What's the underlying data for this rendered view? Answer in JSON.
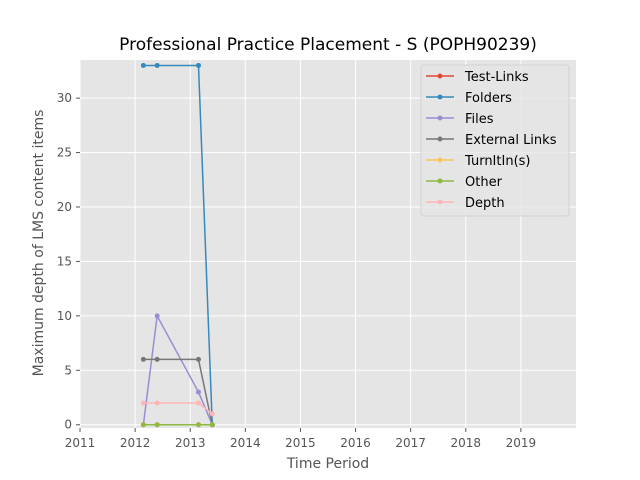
{
  "chart_data": {
    "type": "line",
    "title": "Professional Practice Placement - S (POPH90239)",
    "xlabel": "Time Period",
    "ylabel": "Maximum depth of LMS content items",
    "xlim": [
      2011,
      2020
    ],
    "ylim": [
      -0.3,
      33.5
    ],
    "xticks": [
      2011,
      2012,
      2013,
      2014,
      2015,
      2016,
      2017,
      2018,
      2019
    ],
    "xtick_labels": [
      "2011",
      "2012",
      "2013",
      "2014",
      "2015",
      "2016",
      "2017",
      "2018",
      "2019"
    ],
    "yticks": [
      0,
      5,
      10,
      15,
      20,
      25,
      30
    ],
    "ytick_labels": [
      "0",
      "5",
      "10",
      "15",
      "20",
      "25",
      "30"
    ],
    "grid": true,
    "legend_position": "top-right",
    "series": [
      {
        "name": "Test-Links",
        "color": "#E24A33",
        "x": [
          2012.15,
          2012.4,
          2013.15,
          2013.4
        ],
        "y": [
          0,
          0,
          0,
          0
        ]
      },
      {
        "name": "Folders",
        "color": "#348ABD",
        "x": [
          2012.15,
          2012.4,
          2013.15,
          2013.4
        ],
        "y": [
          33,
          33,
          33,
          0
        ]
      },
      {
        "name": "Files",
        "color": "#988ED5",
        "x": [
          2012.15,
          2012.4,
          2013.15,
          2013.4
        ],
        "y": [
          0,
          10,
          3,
          0
        ]
      },
      {
        "name": "External Links",
        "color": "#777777",
        "x": [
          2012.15,
          2012.4,
          2013.15,
          2013.4
        ],
        "y": [
          6,
          6,
          6,
          0
        ]
      },
      {
        "name": "TurnItIn(s)",
        "color": "#FBC15E",
        "x": [
          2012.15,
          2012.4,
          2013.15,
          2013.4
        ],
        "y": [
          0,
          0,
          0,
          0
        ]
      },
      {
        "name": "Other",
        "color": "#8EBA42",
        "x": [
          2012.15,
          2012.4,
          2013.15,
          2013.4
        ],
        "y": [
          0,
          0,
          0,
          0
        ]
      },
      {
        "name": "Depth",
        "color": "#FFB5B8",
        "x": [
          2012.15,
          2012.4,
          2013.15,
          2013.4
        ],
        "y": [
          2,
          2,
          2,
          1
        ]
      }
    ]
  }
}
